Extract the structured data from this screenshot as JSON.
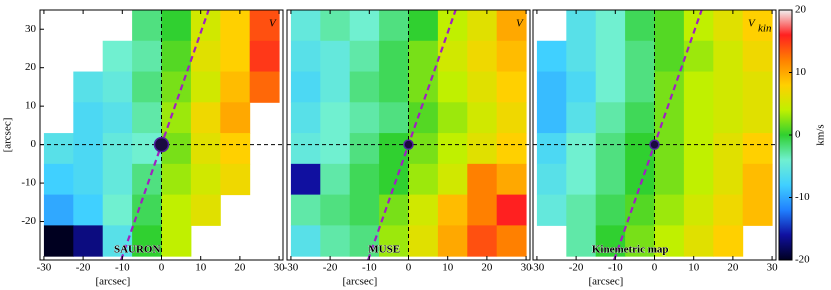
{
  "chart_data": [
    {
      "type": "heatmap",
      "name": "SAURON",
      "label": "V",
      "xlabel": "[arcsec]",
      "ylabel": "[arcsec]",
      "xlim": [
        -31,
        31
      ],
      "ylim": [
        -30,
        35
      ],
      "xticks": [
        -30,
        -20,
        -10,
        0,
        10,
        20,
        30
      ],
      "yticks": [
        -20,
        -10,
        0,
        10,
        20,
        30
      ],
      "clim": [
        -20,
        20
      ],
      "colormap": [
        "#000020",
        "#1010a0",
        "#2080ff",
        "#40d0ff",
        "#70f0d0",
        "#30d030",
        "#c0f000",
        "#ffd000",
        "#ff8000",
        "#ff2020",
        "#f0f0f0"
      ],
      "x": [
        -26.25,
        -18.75,
        -11.25,
        -3.75,
        3.75,
        11.25,
        18.75,
        26.25
      ],
      "y": [
        31,
        23,
        15,
        7,
        -1,
        -9,
        -17,
        -25
      ],
      "values": [
        [
          null,
          null,
          null,
          -2,
          0,
          5,
          8,
          14
        ],
        [
          null,
          null,
          -4,
          -3,
          1,
          6,
          8,
          15
        ],
        [
          null,
          -6,
          -5,
          -2,
          2,
          5,
          9,
          13
        ],
        [
          null,
          -7,
          -6,
          -3,
          3,
          7,
          10,
          null
        ],
        [
          -6,
          -7,
          -5,
          -4,
          2,
          6,
          8,
          null
        ],
        [
          -8,
          -7,
          -5,
          -2,
          3,
          5,
          7,
          null
        ],
        [
          -10,
          -8,
          -4,
          -1,
          4,
          6,
          null,
          null
        ],
        [
          -20,
          -17,
          -6,
          0,
          4,
          null,
          null,
          null
        ]
      ]
    },
    {
      "type": "heatmap",
      "name": "MUSE",
      "label": "V",
      "xlabel": "[arcsec]",
      "xlim": [
        -31,
        31
      ],
      "ylim": [
        -30,
        35
      ],
      "xticks": [
        -30,
        -20,
        -10,
        0,
        10,
        20,
        30
      ],
      "clim": [
        -20,
        20
      ],
      "colormap": [
        "#000020",
        "#1010a0",
        "#2080ff",
        "#40d0ff",
        "#70f0d0",
        "#30d030",
        "#c0f000",
        "#ffd000",
        "#ff8000",
        "#ff2020",
        "#f0f0f0"
      ],
      "x": [
        -26.25,
        -18.75,
        -11.25,
        -3.75,
        3.75,
        11.25,
        18.75,
        26.25
      ],
      "y": [
        31,
        23,
        15,
        7,
        -1,
        -9,
        -17,
        -25
      ],
      "values": [
        [
          -5,
          -3,
          -4,
          -2,
          0,
          4,
          6,
          10
        ],
        [
          -6,
          -5,
          -3,
          -1,
          2,
          5,
          7,
          9
        ],
        [
          -7,
          -5,
          -2,
          -1,
          2,
          4,
          6,
          8
        ],
        [
          -6,
          -4,
          -3,
          -2,
          1,
          3,
          5,
          7
        ],
        [
          -5,
          -4,
          -2,
          0,
          2,
          4,
          6,
          8
        ],
        [
          -16,
          -3,
          -1,
          0,
          3,
          5,
          12,
          10
        ],
        [
          -3,
          -2,
          -1,
          2,
          5,
          9,
          12,
          16
        ],
        [
          -6,
          -3,
          -2,
          3,
          6,
          10,
          14,
          12
        ]
      ]
    },
    {
      "type": "heatmap",
      "name": "Kinemetric map",
      "label": "V",
      "label_sub": "kin",
      "xlabel": "[arcsec]",
      "xlim": [
        -31,
        31
      ],
      "ylim": [
        -30,
        35
      ],
      "xticks": [
        -30,
        -20,
        -10,
        0,
        10,
        20,
        30
      ],
      "clim": [
        -20,
        20
      ],
      "cticks": [
        -20,
        -10,
        0,
        10,
        20
      ],
      "clabel": "km/s",
      "colormap": [
        "#000020",
        "#1010a0",
        "#2080ff",
        "#40d0ff",
        "#70f0d0",
        "#30d030",
        "#c0f000",
        "#ffd000",
        "#ff8000",
        "#ff2020",
        "#f0f0f0"
      ],
      "x": [
        -26.25,
        -18.75,
        -11.25,
        -3.75,
        3.75,
        11.25,
        18.75,
        26.25
      ],
      "y": [
        31,
        23,
        15,
        7,
        -1,
        -9,
        -17,
        -25
      ],
      "values": [
        [
          null,
          -6,
          -4,
          -1,
          1,
          4,
          6,
          8
        ],
        [
          -8,
          -6,
          -4,
          -2,
          1,
          3,
          5,
          7
        ],
        [
          -9,
          -7,
          -4,
          -2,
          2,
          4,
          5,
          6
        ],
        [
          -9,
          -6,
          -3,
          -1,
          2,
          4,
          5,
          6
        ],
        [
          -7,
          -4,
          -2,
          0,
          2,
          4,
          6,
          8
        ],
        [
          -6,
          -4,
          -2,
          0,
          2,
          4,
          6,
          9
        ],
        [
          -5,
          -3,
          -1,
          1,
          3,
          5,
          7,
          9
        ],
        [
          null,
          -3,
          0,
          2,
          4,
          6,
          8,
          null
        ]
      ]
    }
  ]
}
